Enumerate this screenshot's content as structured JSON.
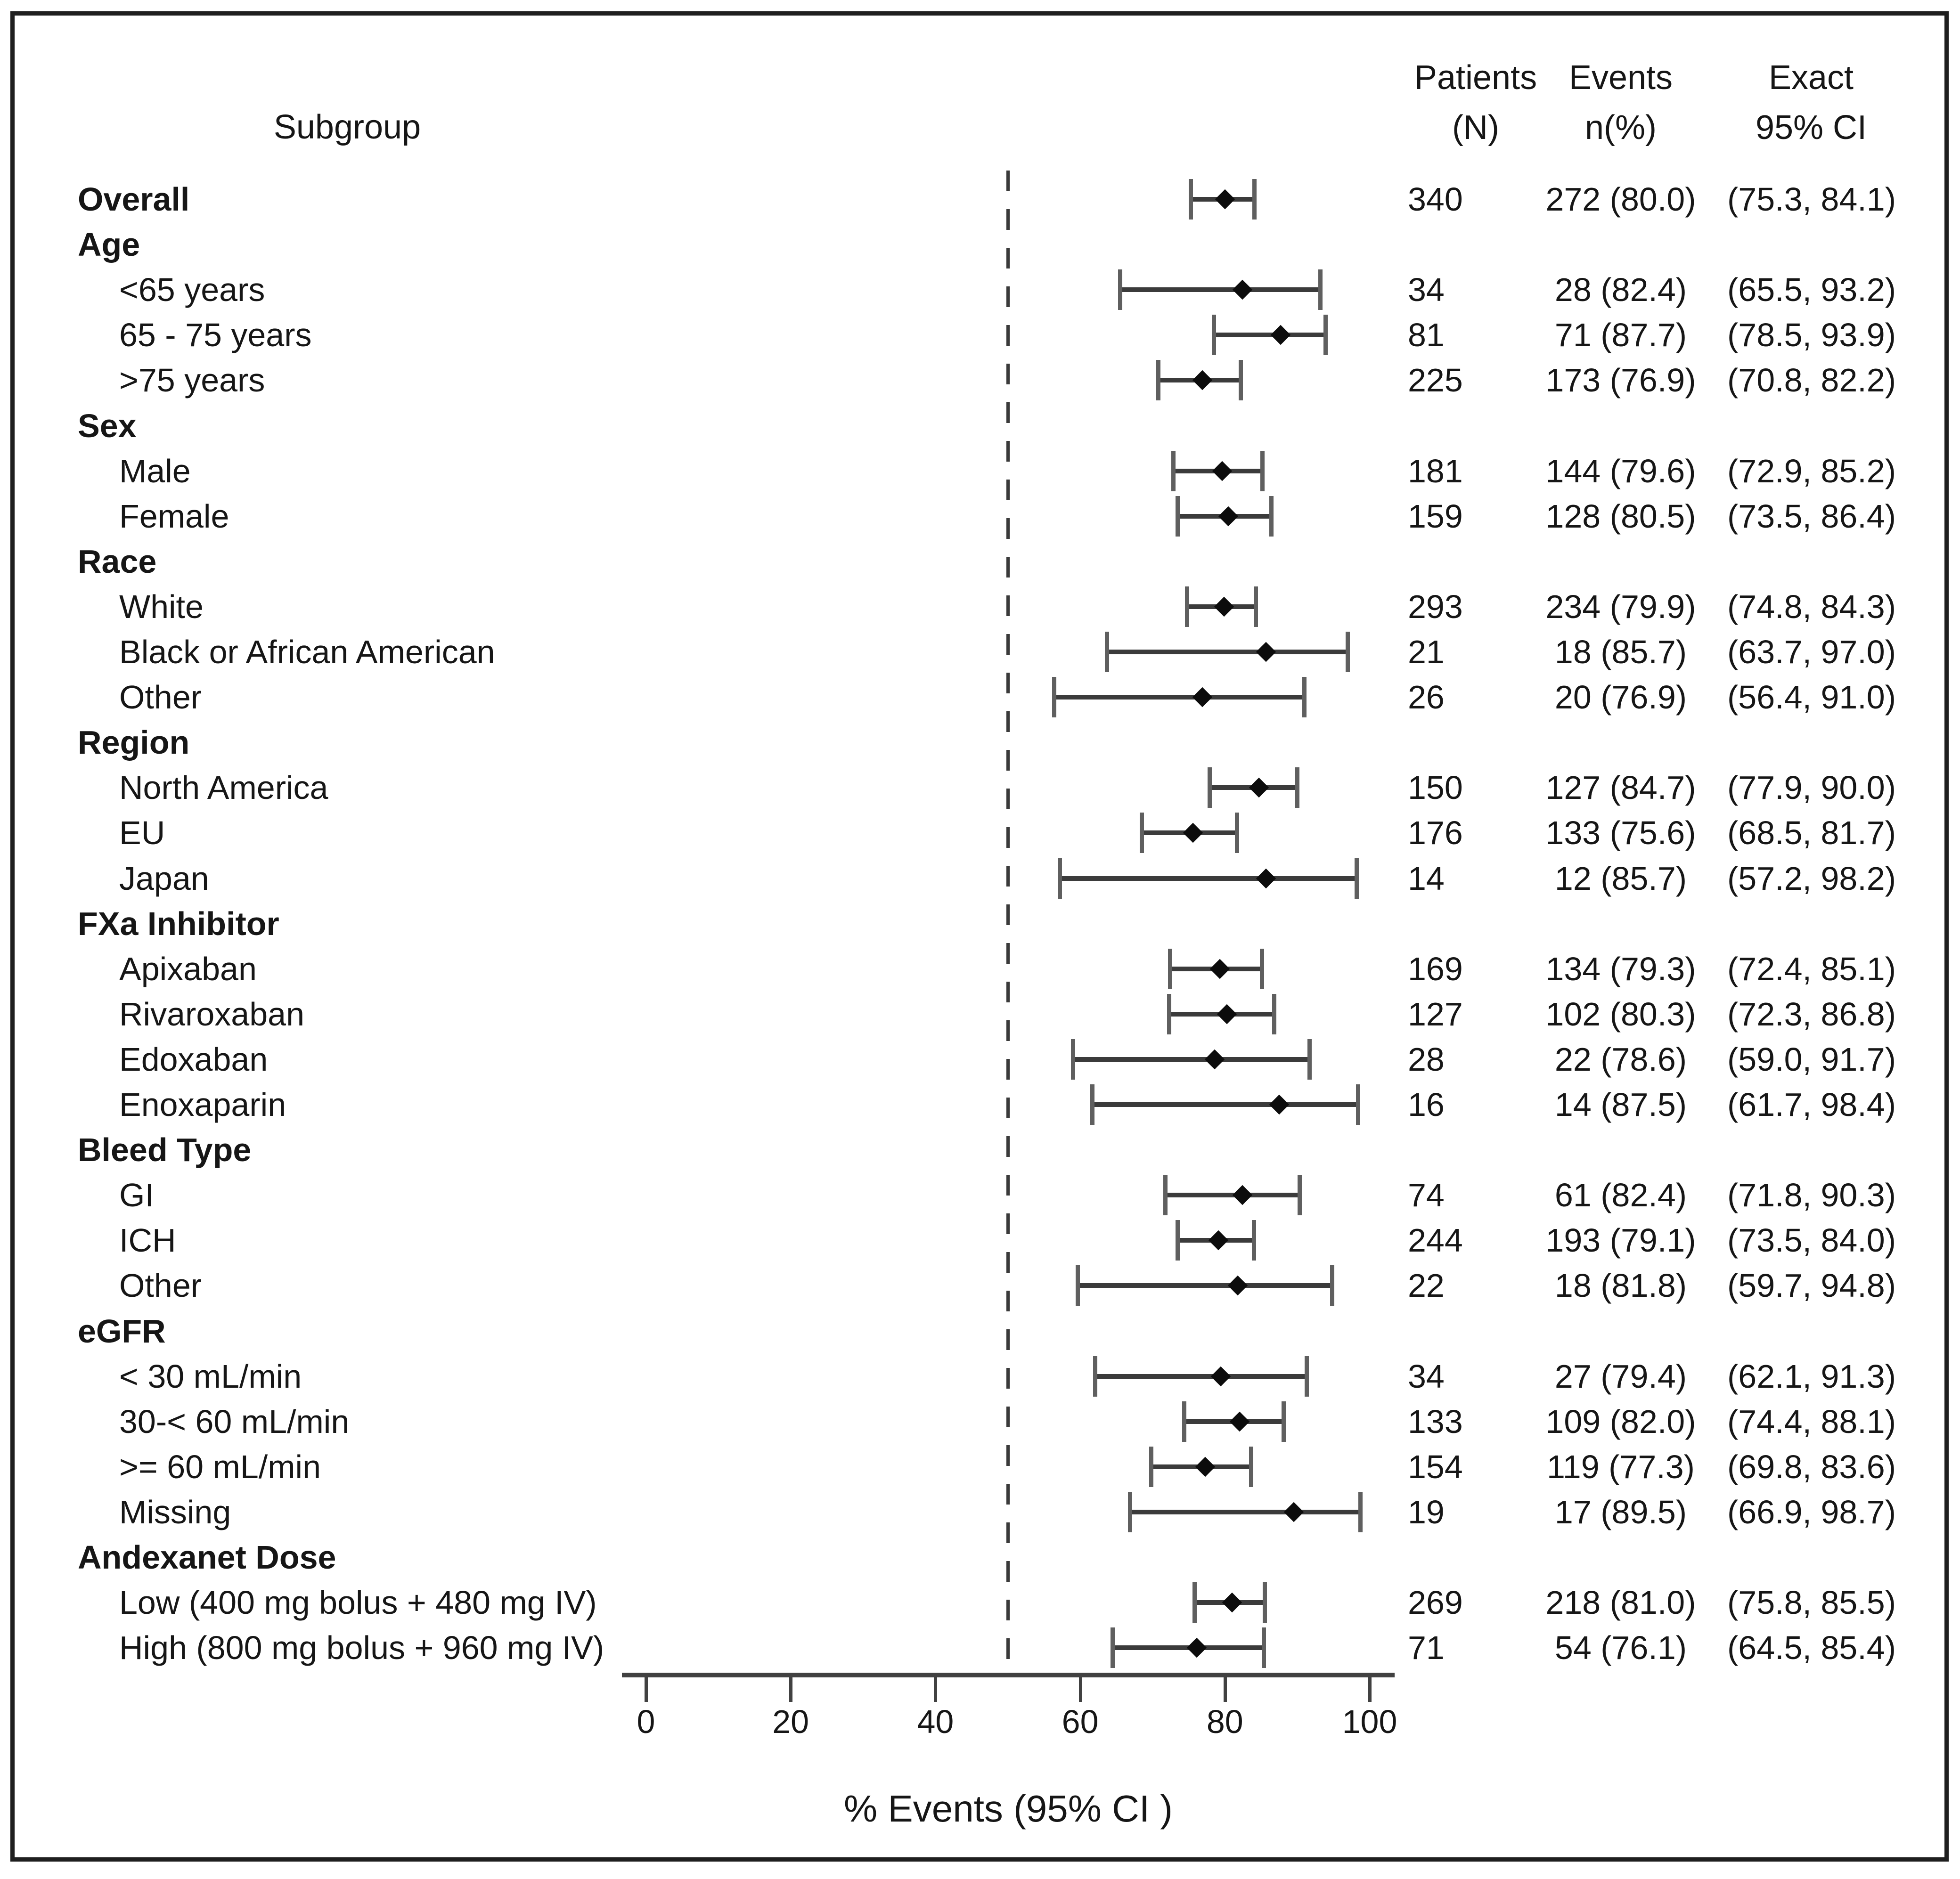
{
  "figure": {
    "headers": {
      "subgroup": "Subgroup",
      "patients": [
        "Patients",
        "(N)"
      ],
      "events": [
        "Events",
        "n(%)"
      ],
      "exact": [
        "Exact",
        "95% CI"
      ]
    }
  },
  "chart_data": {
    "type": "scatter",
    "variant": "forest-plot",
    "title": "",
    "xlabel": "% Events (95% CI )",
    "xlim": [
      0,
      100
    ],
    "xticks": [
      0,
      20,
      40,
      60,
      80,
      100
    ],
    "reference_line_x": 50,
    "grid": false,
    "legend": null,
    "columns": [
      "Subgroup",
      "Patients (N)",
      "Events n(%)",
      "Exact 95% CI"
    ],
    "rows": [
      {
        "type": "data",
        "bold": true,
        "indent": 0,
        "label": "Overall",
        "n": "340",
        "events": "272 (80.0)",
        "ci": "(75.3, 84.1)",
        "pt": 80.0,
        "lo": 75.3,
        "hi": 84.1
      },
      {
        "type": "header",
        "label": "Age"
      },
      {
        "type": "data",
        "indent": 1,
        "label": "<65 years",
        "n": "34",
        "events": "28 (82.4)",
        "ci": "(65.5, 93.2)",
        "pt": 82.4,
        "lo": 65.5,
        "hi": 93.2
      },
      {
        "type": "data",
        "indent": 1,
        "label": "65 - 75 years",
        "n": "81",
        "events": "71 (87.7)",
        "ci": "(78.5, 93.9)",
        "pt": 87.7,
        "lo": 78.5,
        "hi": 93.9
      },
      {
        "type": "data",
        "indent": 1,
        "label": ">75 years",
        "n": "225",
        "events": "173 (76.9)",
        "ci": "(70.8, 82.2)",
        "pt": 76.9,
        "lo": 70.8,
        "hi": 82.2
      },
      {
        "type": "header",
        "label": "Sex"
      },
      {
        "type": "data",
        "indent": 1,
        "label": "Male",
        "n": "181",
        "events": "144 (79.6)",
        "ci": "(72.9, 85.2)",
        "pt": 79.6,
        "lo": 72.9,
        "hi": 85.2
      },
      {
        "type": "data",
        "indent": 1,
        "label": "Female",
        "n": "159",
        "events": "128 (80.5)",
        "ci": "(73.5, 86.4)",
        "pt": 80.5,
        "lo": 73.5,
        "hi": 86.4
      },
      {
        "type": "header",
        "label": "Race"
      },
      {
        "type": "data",
        "indent": 1,
        "label": "White",
        "n": "293",
        "events": "234 (79.9)",
        "ci": "(74.8, 84.3)",
        "pt": 79.9,
        "lo": 74.8,
        "hi": 84.3
      },
      {
        "type": "data",
        "indent": 1,
        "label": "Black or African American",
        "n": "21",
        "events": "18 (85.7)",
        "ci": "(63.7, 97.0)",
        "pt": 85.7,
        "lo": 63.7,
        "hi": 97.0
      },
      {
        "type": "data",
        "indent": 1,
        "label": "Other",
        "n": "26",
        "events": "20 (76.9)",
        "ci": "(56.4, 91.0)",
        "pt": 76.9,
        "lo": 56.4,
        "hi": 91.0
      },
      {
        "type": "header",
        "label": "Region"
      },
      {
        "type": "data",
        "indent": 1,
        "label": "North America",
        "n": "150",
        "events": "127 (84.7)",
        "ci": "(77.9, 90.0)",
        "pt": 84.7,
        "lo": 77.9,
        "hi": 90.0
      },
      {
        "type": "data",
        "indent": 1,
        "label": "EU",
        "n": "176",
        "events": "133 (75.6)",
        "ci": "(68.5, 81.7)",
        "pt": 75.6,
        "lo": 68.5,
        "hi": 81.7
      },
      {
        "type": "data",
        "indent": 1,
        "label": "Japan",
        "n": "14",
        "events": "12 (85.7)",
        "ci": "(57.2, 98.2)",
        "pt": 85.7,
        "lo": 57.2,
        "hi": 98.2
      },
      {
        "type": "header",
        "label": "FXa Inhibitor"
      },
      {
        "type": "data",
        "indent": 1,
        "label": "Apixaban",
        "n": "169",
        "events": "134 (79.3)",
        "ci": "(72.4, 85.1)",
        "pt": 79.3,
        "lo": 72.4,
        "hi": 85.1
      },
      {
        "type": "data",
        "indent": 1,
        "label": "Rivaroxaban",
        "n": "127",
        "events": "102 (80.3)",
        "ci": "(72.3, 86.8)",
        "pt": 80.3,
        "lo": 72.3,
        "hi": 86.8
      },
      {
        "type": "data",
        "indent": 1,
        "label": "Edoxaban",
        "n": "28",
        "events": "22 (78.6)",
        "ci": "(59.0, 91.7)",
        "pt": 78.6,
        "lo": 59.0,
        "hi": 91.7
      },
      {
        "type": "data",
        "indent": 1,
        "label": "Enoxaparin",
        "n": "16",
        "events": "14 (87.5)",
        "ci": "(61.7, 98.4)",
        "pt": 87.5,
        "lo": 61.7,
        "hi": 98.4
      },
      {
        "type": "header",
        "label": "Bleed Type"
      },
      {
        "type": "data",
        "indent": 1,
        "label": "GI",
        "n": "74",
        "events": "61 (82.4)",
        "ci": "(71.8, 90.3)",
        "pt": 82.4,
        "lo": 71.8,
        "hi": 90.3
      },
      {
        "type": "data",
        "indent": 1,
        "label": "ICH",
        "n": "244",
        "events": "193 (79.1)",
        "ci": "(73.5, 84.0)",
        "pt": 79.1,
        "lo": 73.5,
        "hi": 84.0
      },
      {
        "type": "data",
        "indent": 1,
        "label": "Other",
        "n": "22",
        "events": "18 (81.8)",
        "ci": "(59.7, 94.8)",
        "pt": 81.8,
        "lo": 59.7,
        "hi": 94.8
      },
      {
        "type": "header",
        "label": "eGFR"
      },
      {
        "type": "data",
        "indent": 1,
        "label": "< 30 mL/min",
        "n": "34",
        "events": "27 (79.4)",
        "ci": "(62.1, 91.3)",
        "pt": 79.4,
        "lo": 62.1,
        "hi": 91.3
      },
      {
        "type": "data",
        "indent": 1,
        "label": "30-< 60 mL/min",
        "n": "133",
        "events": "109 (82.0)",
        "ci": "(74.4, 88.1)",
        "pt": 82.0,
        "lo": 74.4,
        "hi": 88.1
      },
      {
        "type": "data",
        "indent": 1,
        "label": ">= 60 mL/min",
        "n": "154",
        "events": "119 (77.3)",
        "ci": "(69.8, 83.6)",
        "pt": 77.3,
        "lo": 69.8,
        "hi": 83.6
      },
      {
        "type": "data",
        "indent": 1,
        "label": "Missing",
        "n": "19",
        "events": "17 (89.5)",
        "ci": "(66.9, 98.7)",
        "pt": 89.5,
        "lo": 66.9,
        "hi": 98.7
      },
      {
        "type": "header",
        "label": "Andexanet Dose"
      },
      {
        "type": "data",
        "indent": 1,
        "label": "Low (400 mg bolus + 480 mg IV)",
        "n": "269",
        "events": "218 (81.0)",
        "ci": "(75.8, 85.5)",
        "pt": 81.0,
        "lo": 75.8,
        "hi": 85.5
      },
      {
        "type": "data",
        "indent": 1,
        "label": "High (800 mg bolus + 960 mg IV)",
        "n": "71",
        "events": "54 (76.1)",
        "ci": "(64.5, 85.4)",
        "pt": 76.1,
        "lo": 64.5,
        "hi": 85.4
      }
    ]
  },
  "colors": {
    "text": "#161616",
    "frame": "#1f1f1f",
    "axis": "#414141",
    "ci_line": "#3b3b3b",
    "ci_cap": "#5f5f5f",
    "marker": "#0c0c0c",
    "reference_line": "#3a3a3a",
    "background": "#ffffff"
  }
}
